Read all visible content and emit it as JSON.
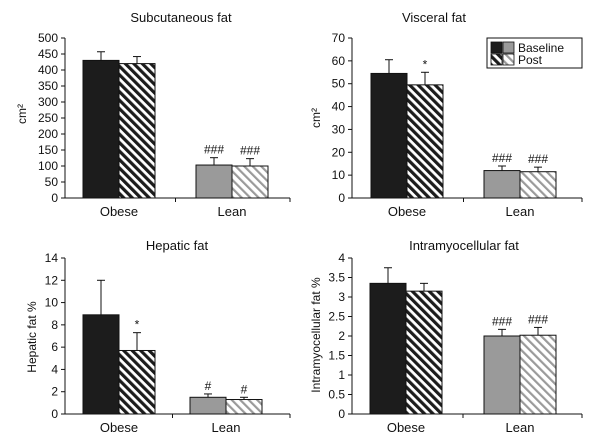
{
  "colors": {
    "obese_baseline": "#1c1c1c",
    "obese_post_stripe": "#1c1c1c",
    "lean_baseline": "#9a9a9a",
    "lean_post_stripe": "#9a9a9a",
    "axis": "#111111"
  },
  "legend": {
    "placement": "top-right of Visceral fat panel",
    "baseline": "Baseline",
    "post": "Post"
  },
  "chart_data": [
    {
      "type": "bar",
      "title": "Subcutaneous fat",
      "ylabel": "cm²",
      "ylim": [
        0,
        500
      ],
      "yticks": [
        "0",
        "50",
        "100",
        "150",
        "200",
        "250",
        "300",
        "350",
        "400",
        "450",
        "500"
      ],
      "yticks_values": [
        0,
        50,
        100,
        150,
        200,
        250,
        300,
        350,
        400,
        450,
        500
      ],
      "categories": [
        "Obese",
        "Lean"
      ],
      "series": [
        {
          "name": "Baseline",
          "values": [
            430,
            103
          ],
          "errors": [
            27,
            23
          ],
          "annotations": [
            "",
            "###"
          ]
        },
        {
          "name": "Post",
          "values": [
            420,
            100
          ],
          "errors": [
            22,
            23
          ],
          "annotations": [
            "",
            "###"
          ]
        }
      ],
      "grid": false
    },
    {
      "type": "bar",
      "title": "Visceral fat",
      "ylabel": "cm²",
      "ylim": [
        0,
        70
      ],
      "yticks": [
        "0",
        "10",
        "20",
        "30",
        "40",
        "50",
        "60",
        "70"
      ],
      "yticks_values": [
        0,
        10,
        20,
        30,
        40,
        50,
        60,
        70
      ],
      "categories": [
        "Obese",
        "Lean"
      ],
      "series": [
        {
          "name": "Baseline",
          "values": [
            54.5,
            12
          ],
          "errors": [
            6,
            2
          ],
          "annotations": [
            "",
            "###"
          ]
        },
        {
          "name": "Post",
          "values": [
            49.5,
            11.5
          ],
          "errors": [
            5.5,
            2
          ],
          "annotations": [
            "*",
            "###"
          ]
        }
      ],
      "grid": false,
      "legend": true
    },
    {
      "type": "bar",
      "title": "Hepatic fat",
      "ylabel": "Hepatic fat %",
      "ylim": [
        0,
        14
      ],
      "yticks": [
        "0",
        "2",
        "4",
        "6",
        "8",
        "10",
        "12",
        "14"
      ],
      "yticks_values": [
        0,
        2,
        4,
        6,
        8,
        10,
        12,
        14
      ],
      "categories": [
        "Obese",
        "Lean"
      ],
      "series": [
        {
          "name": "Baseline",
          "values": [
            8.9,
            1.5
          ],
          "errors": [
            3.1,
            0.3
          ],
          "annotations": [
            "",
            "#"
          ]
        },
        {
          "name": "Post",
          "values": [
            5.7,
            1.3
          ],
          "errors": [
            1.6,
            0.2
          ],
          "annotations": [
            "*",
            "#"
          ]
        }
      ],
      "grid": false
    },
    {
      "type": "bar",
      "title": "Intramyocellular fat",
      "ylabel": "Intramyocellular fat %",
      "ylim": [
        0,
        4
      ],
      "yticks": [
        "0",
        "0.5",
        "1",
        "1.5",
        "2",
        "2.5",
        "3",
        "3.5",
        "4"
      ],
      "yticks_values": [
        0,
        0.5,
        1,
        1.5,
        2,
        2.5,
        3,
        3.5,
        4
      ],
      "categories": [
        "Obese",
        "Lean"
      ],
      "series": [
        {
          "name": "Baseline",
          "values": [
            3.35,
            2.0
          ],
          "errors": [
            0.4,
            0.17
          ],
          "annotations": [
            "",
            "###"
          ]
        },
        {
          "name": "Post",
          "values": [
            3.15,
            2.02
          ],
          "errors": [
            0.2,
            0.2
          ],
          "annotations": [
            "",
            "###"
          ]
        }
      ],
      "grid": false
    }
  ]
}
